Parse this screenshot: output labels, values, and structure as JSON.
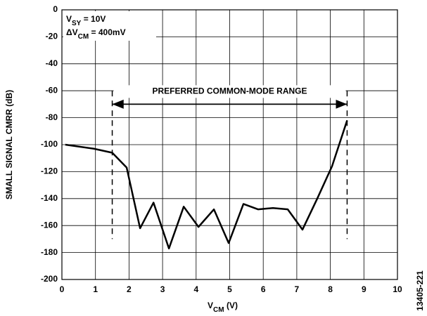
{
  "chart_data": {
    "type": "line",
    "x_label": [
      "V",
      "CM",
      " (V)"
    ],
    "y_label": "SMALL SIGNAL CMRR (dB)",
    "annotations": [
      [
        "V",
        "SY",
        " = 10V"
      ],
      [
        "ΔV",
        "CM",
        " = 400mV"
      ]
    ],
    "range_label": "PREFERRED COMMON-MODE RANGE",
    "range": [
      1.5,
      8.5
    ],
    "figure_id": "13405-221",
    "x": [
      0.1,
      0.95,
      1.5,
      1.93,
      2.33,
      2.73,
      3.19,
      3.63,
      4.07,
      4.53,
      4.97,
      5.41,
      5.85,
      6.29,
      6.73,
      7.17,
      7.61,
      8.05,
      8.5
    ],
    "series": [
      {
        "color": "#000000",
        "values": [
          -100,
          -103,
          -106,
          -117,
          -162,
          -143,
          -177,
          -146,
          -161,
          -148,
          -173,
          -144,
          -148,
          -147,
          -148,
          -163,
          -140,
          -116,
          -82
        ]
      }
    ],
    "xlim": [
      0,
      10
    ],
    "xticks": [
      0,
      1,
      2,
      3,
      4,
      5,
      6,
      7,
      8,
      9,
      10
    ],
    "ylim": [
      -200,
      0
    ],
    "yticks": [
      0,
      -20,
      -40,
      -60,
      -80,
      -100,
      -120,
      -140,
      -160,
      -180,
      -200
    ],
    "grid": true
  }
}
